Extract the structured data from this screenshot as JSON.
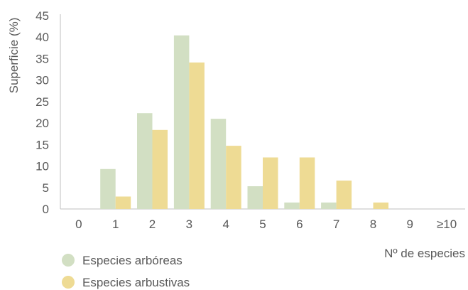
{
  "chart_data": {
    "type": "bar",
    "categories": [
      "0",
      "1",
      "2",
      "3",
      "4",
      "5",
      "6",
      "7",
      "8",
      "9",
      "≥10"
    ],
    "series": [
      {
        "name": "Especies arbóreas",
        "color": "#d2dfc3",
        "values": [
          0,
          9.3,
          22.3,
          40.4,
          21.0,
          5.3,
          1.5,
          1.5,
          0,
          0,
          0
        ]
      },
      {
        "name": "Especies arbustivas",
        "color": "#eedb94",
        "values": [
          0,
          2.9,
          18.4,
          34.1,
          14.7,
          12.0,
          12.0,
          6.6,
          1.5,
          0,
          0
        ]
      }
    ],
    "ylabel": "Superficie (%)",
    "xlabel": "Nº de especies",
    "ylim": [
      0,
      45
    ],
    "yticks": [
      0,
      5,
      10,
      15,
      20,
      25,
      30,
      35,
      40,
      45
    ],
    "grid": false,
    "legend_position": "bottom-left"
  }
}
